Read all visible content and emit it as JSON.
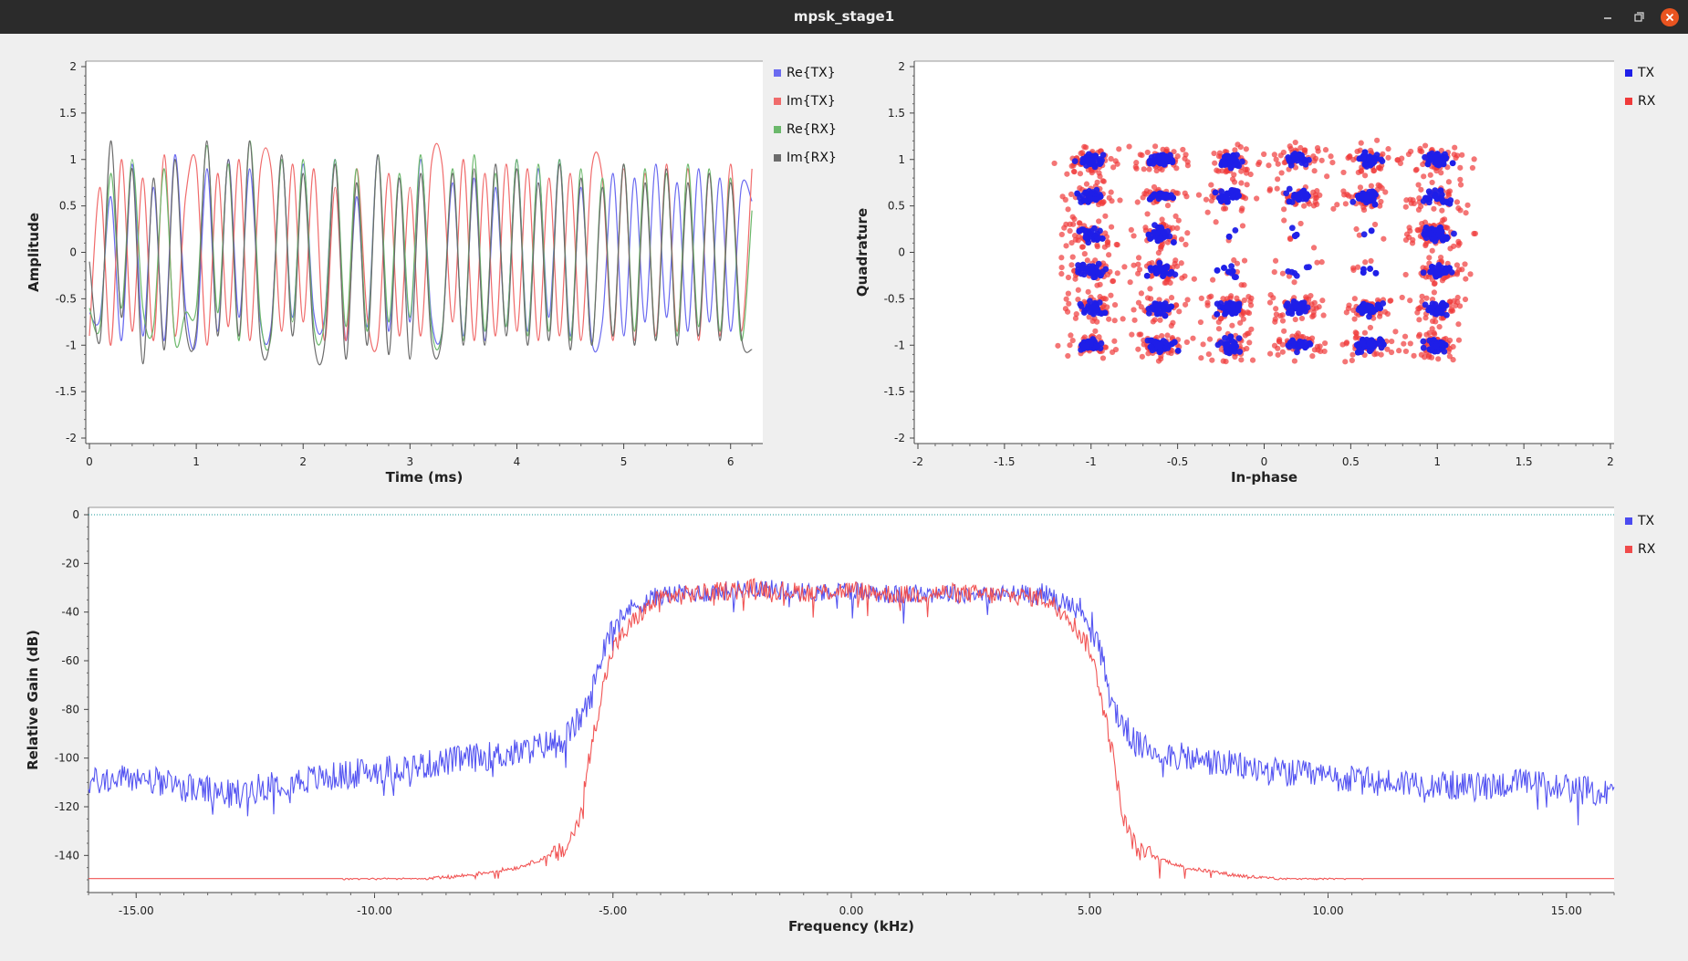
{
  "window": {
    "title": "mpsk_stage1"
  },
  "time_plot": {
    "xlabel": "Time (ms)",
    "ylabel": "Amplitude",
    "legend": [
      {
        "label": "Re{TX}",
        "color": "#6b6bf0"
      },
      {
        "label": "Im{TX}",
        "color": "#f06b6b"
      },
      {
        "label": "Re{RX}",
        "color": "#6bb86b"
      },
      {
        "label": "Im{RX}",
        "color": "#6b6b6b"
      }
    ]
  },
  "const_plot": {
    "xlabel": "In-phase",
    "ylabel": "Quadrature",
    "legend": [
      {
        "label": "TX",
        "color": "#1f1fe8"
      },
      {
        "label": "RX",
        "color": "#f03a3a"
      }
    ]
  },
  "freq_plot": {
    "xlabel": "Frequency (kHz)",
    "ylabel": "Relative Gain (dB)",
    "legend": [
      {
        "label": "TX",
        "color": "#4b4bf0"
      },
      {
        "label": "RX",
        "color": "#f04b4b"
      }
    ]
  },
  "chart_data": [
    {
      "type": "line",
      "xlabel": "Time (ms)",
      "ylabel": "Amplitude",
      "xlim": [
        0,
        6.25
      ],
      "ylim": [
        -2,
        2
      ],
      "xticks": [
        "0",
        "1",
        "2",
        "3",
        "4",
        "5",
        "6"
      ],
      "yticks": [
        "2",
        "1.5",
        "1",
        "0.5",
        "0",
        "-0.5",
        "-1",
        "-1.5",
        "-2"
      ],
      "series": [
        {
          "name": "Re{TX}",
          "x": [
            0,
            0.1,
            0.2,
            0.3,
            0.4,
            0.5,
            0.6,
            0.7,
            0.8,
            0.9,
            1.0,
            1.1,
            1.2,
            1.3,
            1.4,
            1.5,
            1.6,
            1.7,
            1.8,
            1.9,
            2.0,
            2.1,
            2.2,
            2.3,
            2.4,
            2.5,
            2.6,
            2.7,
            2.8,
            2.9,
            3.0,
            3.1,
            3.2,
            3.3,
            3.4,
            3.5,
            3.6,
            3.7,
            3.8,
            3.9,
            4.0,
            4.1,
            4.2,
            4.3,
            4.4,
            4.5,
            4.6,
            4.7,
            4.8,
            4.9,
            5.0,
            5.1,
            5.2,
            5.3,
            5.4,
            5.5,
            5.6,
            5.7,
            5.8,
            5.9,
            6.0,
            6.1,
            6.2
          ],
          "values": [
            -0.65,
            -0.7,
            0.6,
            -0.95,
            0.95,
            -0.9,
            0.7,
            -0.95,
            1.05,
            -0.6,
            -0.95,
            0.9,
            -0.85,
            1.0,
            -0.7,
            0.9,
            -0.75,
            -0.8,
            1.0,
            -0.7,
            0.95,
            -0.65,
            -0.7,
            1.0,
            -0.95,
            0.6,
            -0.8,
            1.05,
            -0.85,
            0.8,
            -0.75,
            1.0,
            -0.7,
            -0.85,
            0.75,
            -0.9,
            0.8,
            -0.95,
            0.7,
            -0.8,
            1.0,
            -0.85,
            0.9,
            -0.7,
            1.0,
            -0.9,
            0.7,
            -0.95,
            -0.75,
            0.85,
            -0.9,
            0.8,
            -0.75,
            0.95,
            -0.7,
            0.75,
            -0.85,
            0.9,
            -0.75,
            0.8,
            -0.85,
            0.7,
            0.55
          ]
        },
        {
          "name": "Im{TX}",
          "x": [
            0,
            0.1,
            0.2,
            0.3,
            0.4,
            0.5,
            0.6,
            0.7,
            0.8,
            0.9,
            1.0,
            1.1,
            1.2,
            1.3,
            1.4,
            1.5,
            1.6,
            1.7,
            1.8,
            1.9,
            2.0,
            2.1,
            2.2,
            2.3,
            2.4,
            2.5,
            2.6,
            2.7,
            2.8,
            2.9,
            3.0,
            3.1,
            3.2,
            3.3,
            3.4,
            3.5,
            3.6,
            3.7,
            3.8,
            3.9,
            4.0,
            4.1,
            4.2,
            4.3,
            4.4,
            4.5,
            4.6,
            4.7,
            4.8,
            4.9,
            5.0,
            5.1,
            5.2,
            5.3,
            5.4,
            5.5,
            5.6,
            5.7,
            5.8,
            5.9,
            6.0,
            6.1,
            6.2
          ],
          "values": [
            -0.9,
            0.7,
            -1.0,
            1.0,
            -0.85,
            0.8,
            -0.95,
            1.05,
            -0.9,
            0.6,
            0.95,
            -1.0,
            0.85,
            -0.8,
            1.0,
            -0.95,
            0.9,
            0.9,
            -0.85,
            0.95,
            -0.75,
            0.9,
            -0.95,
            0.7,
            -0.95,
            0.9,
            -0.7,
            -0.95,
            0.85,
            -0.9,
            0.7,
            -0.9,
            0.95,
            0.95,
            -0.75,
            1.0,
            -0.95,
            0.85,
            -0.9,
            0.95,
            -0.85,
            0.9,
            -0.95,
            0.8,
            -0.9,
            0.85,
            -0.95,
            0.9,
            0.8,
            -0.95,
            0.9,
            -0.95,
            0.85,
            -0.9,
            0.95,
            -0.85,
            0.9,
            -0.95,
            0.85,
            -0.9,
            0.95,
            -0.85,
            0.9
          ]
        },
        {
          "name": "Re{RX}",
          "x": [
            0,
            0.1,
            0.2,
            0.3,
            0.4,
            0.5,
            0.6,
            0.7,
            0.8,
            0.9,
            1.0,
            1.1,
            1.2,
            1.3,
            1.4,
            1.5,
            1.6,
            1.7,
            1.8,
            1.9,
            2.0,
            2.1,
            2.2,
            2.3,
            2.4,
            2.5,
            2.6,
            2.7,
            2.8,
            2.9,
            3.0,
            3.1,
            3.2,
            3.3,
            3.4,
            3.5,
            3.6,
            3.7,
            3.8,
            3.9,
            4.0,
            4.1,
            4.2,
            4.3,
            4.4,
            4.5,
            4.6,
            4.7,
            4.8,
            4.9,
            5.0,
            5.1,
            5.2,
            5.3,
            5.4,
            5.5,
            5.6,
            5.7,
            5.8,
            5.9,
            6.0,
            6.1,
            6.2
          ],
          "values": [
            -0.6,
            -0.8,
            0.85,
            -0.6,
            1.0,
            -0.6,
            -0.8,
            0.9,
            -0.95,
            -0.65,
            -0.6,
            1.15,
            -0.65,
            0.95,
            -0.95,
            1.2,
            -0.7,
            -0.9,
            1.0,
            -0.75,
            1.0,
            -0.8,
            -0.75,
            1.0,
            -0.8,
            0.9,
            -0.85,
            1.05,
            -0.75,
            0.85,
            -0.7,
            1.05,
            -0.8,
            -0.85,
            0.9,
            -0.95,
            1.05,
            -0.85,
            0.85,
            -0.8,
            1.0,
            -0.9,
            0.95,
            -0.85,
            1.0,
            -0.95,
            0.9,
            -1.0,
            0.8,
            -0.9,
            0.95,
            -0.85,
            0.9,
            -0.95,
            0.85,
            -0.9,
            0.95,
            -0.8,
            0.9,
            -0.85,
            0.8,
            -0.95,
            0.45
          ]
        },
        {
          "name": "Im{RX}",
          "x": [
            0,
            0.1,
            0.2,
            0.3,
            0.4,
            0.5,
            0.6,
            0.7,
            0.8,
            0.9,
            1.0,
            1.1,
            1.2,
            1.3,
            1.4,
            1.5,
            1.6,
            1.7,
            1.8,
            1.9,
            2.0,
            2.1,
            2.2,
            2.3,
            2.4,
            2.5,
            2.6,
            2.7,
            2.8,
            2.9,
            3.0,
            3.1,
            3.2,
            3.3,
            3.4,
            3.5,
            3.6,
            3.7,
            3.8,
            3.9,
            4.0,
            4.1,
            4.2,
            4.3,
            4.4,
            4.5,
            4.6,
            4.7,
            4.8,
            4.9,
            5.0,
            5.1,
            5.2,
            5.3,
            5.4,
            5.5,
            5.6,
            5.7,
            5.8,
            5.9,
            6.0,
            6.1,
            6.2
          ],
          "values": [
            -0.1,
            -0.95,
            1.2,
            -0.7,
            0.9,
            -1.2,
            0.8,
            -1.05,
            1.0,
            -0.8,
            -0.85,
            1.2,
            -0.9,
            1.0,
            -0.9,
            1.2,
            -0.95,
            -0.85,
            1.05,
            -0.9,
            0.85,
            -0.95,
            -1.0,
            0.95,
            -1.15,
            0.75,
            -1.0,
            1.05,
            -1.1,
            0.8,
            -1.15,
            0.85,
            -0.95,
            -0.9,
            0.85,
            -1.0,
            0.9,
            -1.0,
            0.95,
            -0.9,
            0.9,
            -1.0,
            0.75,
            -0.95,
            0.95,
            -1.05,
            0.8,
            -1.0,
            0.7,
            -0.9,
            0.95,
            -1.0,
            0.75,
            -0.95,
            0.9,
            -1.0,
            0.75,
            -0.9,
            0.85,
            -0.95,
            0.75,
            -0.9,
            -1.05
          ]
        }
      ]
    },
    {
      "type": "scatter",
      "xlabel": "In-phase",
      "ylabel": "Quadrature",
      "xlim": [
        -2,
        2
      ],
      "ylim": [
        -2,
        2
      ],
      "xticks": [
        "-2",
        "-1.5",
        "-1",
        "-0.5",
        "0",
        "0.5",
        "1",
        "1.5",
        "2"
      ],
      "yticks": [
        "2",
        "1.5",
        "1",
        "0.5",
        "0",
        "-0.5",
        "-1",
        "-1.5",
        "-2"
      ],
      "constellation_levels": [
        -1,
        -0.6,
        -0.2,
        0.2,
        0.6,
        1
      ],
      "series": [
        {
          "name": "TX",
          "spread": 0.07
        },
        {
          "name": "RX",
          "spread": 0.16
        }
      ]
    },
    {
      "type": "line",
      "xlabel": "Frequency (kHz)",
      "ylabel": "Relative Gain (dB)",
      "xlim": [
        -16,
        16
      ],
      "ylim": [
        -150,
        0
      ],
      "xticks": [
        -15.0,
        -10.0,
        -5.0,
        0.0,
        5.0,
        10.0,
        15.0
      ],
      "xtick_labels": [
        "-15.00",
        "-10.00",
        "-5.00",
        "0.00",
        "5.00",
        "10.00",
        "15.00"
      ],
      "yticks": [
        "0",
        "-20",
        "-40",
        "-60",
        "-80",
        "-100",
        "-120",
        "-140"
      ],
      "series": [
        {
          "name": "TX",
          "x": [
            -16,
            -15,
            -14,
            -13,
            -12,
            -11,
            -10,
            -9,
            -8,
            -7,
            -6,
            -5.5,
            -5.2,
            -5,
            -4.5,
            -4,
            -3,
            -2,
            -1,
            0,
            1,
            2,
            3,
            4,
            4.5,
            5,
            5.2,
            5.5,
            6,
            7,
            8,
            9,
            10,
            11,
            12,
            13,
            14,
            15,
            16
          ],
          "values": [
            -110,
            -108,
            -112,
            -115,
            -110,
            -108,
            -105,
            -103,
            -100,
            -98,
            -92,
            -78,
            -55,
            -43,
            -37,
            -33,
            -32,
            -30,
            -32,
            -31,
            -33,
            -32,
            -33,
            -32,
            -36,
            -42,
            -55,
            -80,
            -95,
            -100,
            -103,
            -106,
            -108,
            -110,
            -110,
            -112,
            -110,
            -112,
            -115
          ]
        },
        {
          "name": "RX",
          "x": [
            -16,
            -15,
            -14,
            -13,
            -12,
            -11,
            -10,
            -9,
            -8,
            -7,
            -6,
            -5.7,
            -5.5,
            -5.2,
            -5,
            -4.5,
            -4,
            -3,
            -2,
            -1,
            0,
            1,
            2,
            3,
            4,
            4.5,
            5,
            5.2,
            5.5,
            5.7,
            6,
            7,
            8,
            9,
            10,
            11,
            12,
            13,
            14,
            15,
            16
          ],
          "values": [
            -152,
            -152,
            -152,
            -152,
            -151,
            -151,
            -150,
            -150,
            -148,
            -145,
            -138,
            -125,
            -100,
            -70,
            -55,
            -42,
            -34,
            -32,
            -30,
            -32,
            -31,
            -33,
            -32,
            -33,
            -34,
            -40,
            -55,
            -70,
            -100,
            -125,
            -138,
            -145,
            -148,
            -150,
            -150,
            -151,
            -152,
            -152,
            -152,
            -152,
            -152
          ]
        }
      ]
    }
  ]
}
